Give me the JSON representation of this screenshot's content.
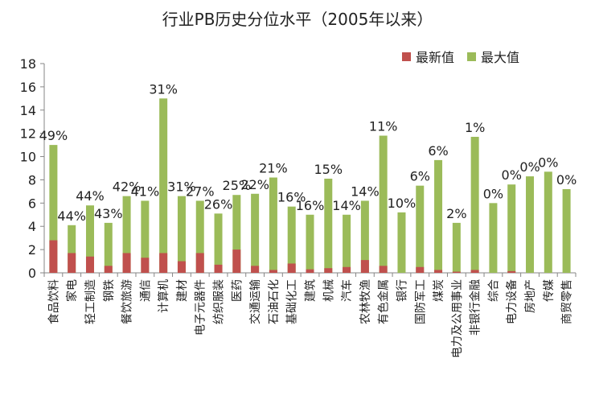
{
  "chart_data": {
    "type": "bar",
    "title": "行业PB历史分位水平（2005年以来）",
    "ylim": [
      0,
      18
    ],
    "yticks": [
      "0",
      "2",
      "4",
      "6",
      "8",
      "10",
      "12",
      "14",
      "16",
      "18"
    ],
    "legend_position": "top-right",
    "categories": [
      "食品饮料",
      "家电",
      "轻工制造",
      "钢铁",
      "餐饮旅游",
      "通信",
      "计算机",
      "建材",
      "电子元器件",
      "纺织服装",
      "医药",
      "交通运输",
      "石油石化",
      "基础化工",
      "建筑",
      "机械",
      "汽车",
      "农林牧渔",
      "有色金属",
      "银行",
      "国防军工",
      "煤炭",
      "电力及公用事业",
      "非银行金融",
      "综合",
      "电力设备",
      "房地产",
      "传媒",
      "商贸零售"
    ],
    "series": [
      {
        "name": "最新值",
        "color": "#c0504d",
        "values": [
          2.8,
          1.7,
          1.4,
          0.6,
          1.7,
          1.3,
          1.7,
          1.0,
          1.7,
          0.7,
          2.0,
          0.6,
          0.25,
          0.8,
          0.3,
          0.4,
          0.5,
          1.1,
          0.6,
          0.0,
          0.5,
          0.25,
          0.1,
          0.25,
          0.0,
          0.15,
          0.0,
          0.0,
          0.0
        ]
      },
      {
        "name": "最大值",
        "color": "#9bbb59",
        "values": [
          11.0,
          4.1,
          5.8,
          4.3,
          6.6,
          6.2,
          15.0,
          6.6,
          6.2,
          5.1,
          6.7,
          6.8,
          8.2,
          5.7,
          5.0,
          8.1,
          5.0,
          6.2,
          11.8,
          5.2,
          7.5,
          9.7,
          4.3,
          11.7,
          6.0,
          7.6,
          8.3,
          8.7,
          7.2
        ]
      }
    ],
    "data_labels": [
      "49%",
      "44%",
      "44%",
      "43%",
      "42%",
      "41%",
      "31%",
      "31%",
      "27%",
      "26%",
      "25%",
      "22%",
      "21%",
      "16%",
      "16%",
      "15%",
      "14%",
      "14%",
      "11%",
      "10%",
      "6%",
      "6%",
      "2%",
      "1%",
      "0%",
      "0%",
      "0%",
      "0%",
      "0%"
    ]
  }
}
